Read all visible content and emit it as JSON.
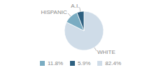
{
  "chart_data": {
    "type": "pie",
    "categories": [
      "WHITE",
      "HISPANIC",
      "A.I."
    ],
    "values": [
      82.4,
      11.8,
      5.9
    ],
    "value_labels": [
      "82.4%",
      "11.8%",
      "5.9%"
    ],
    "colors": [
      "#cfdce8",
      "#7aacc2",
      "#2e6080"
    ],
    "legend": "bottom"
  }
}
